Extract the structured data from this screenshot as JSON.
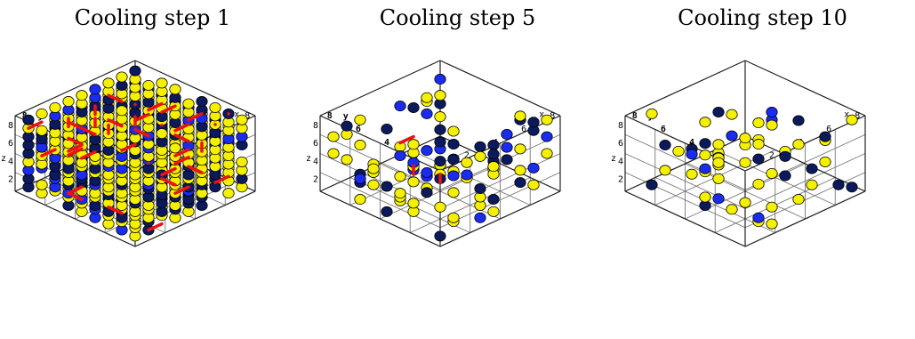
{
  "panels": [
    {
      "title": "Cooling step 1",
      "fill_fraction": 0.93,
      "red_path_segments": 40
    },
    {
      "title": "Cooling step 5",
      "fill_fraction": 0.22,
      "red_path_segments": 3
    },
    {
      "title": "Cooling step 10",
      "fill_fraction": 0.13,
      "red_path_segments": 0
    }
  ],
  "axes": {
    "x_label": "x",
    "y_label": "y",
    "z_label": "z",
    "x_ticks": [
      "2",
      "4",
      "6",
      "8"
    ],
    "y_ticks": [
      "2",
      "4",
      "6",
      "8"
    ],
    "z_ticks": [
      "2",
      "4",
      "6",
      "8"
    ]
  },
  "colors": {
    "yellow_sphere": "#f5f000",
    "navy_sphere": "#0b1a5c",
    "blue_sphere": "#1a2cf0",
    "path_red": "#ee1111",
    "grid": "#777777"
  }
}
